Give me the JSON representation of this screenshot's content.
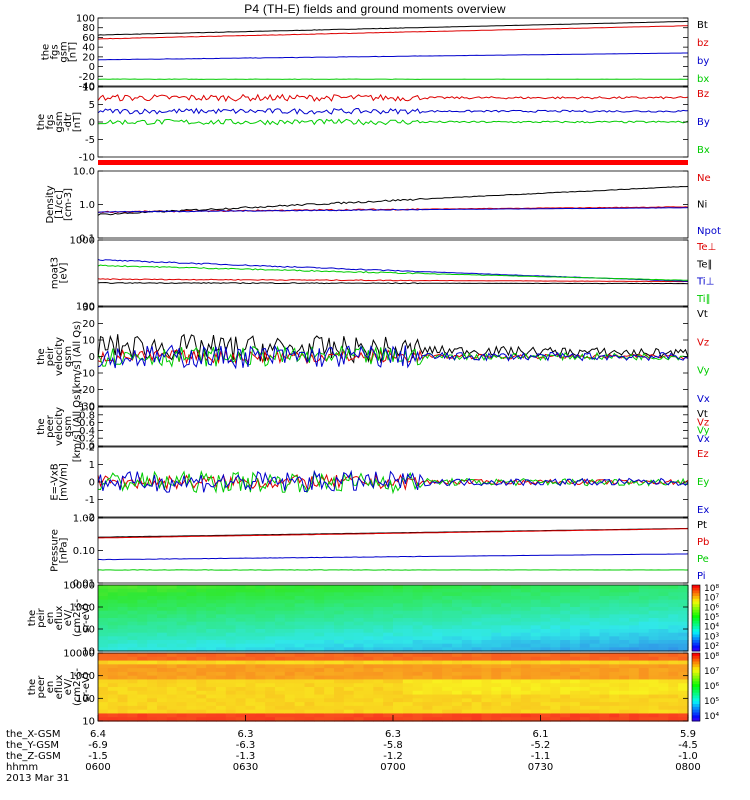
{
  "title": "P4 (TH-E) fields and ground moments overview",
  "chart_data": {
    "type": "line",
    "title": "P4 (TH-E) fields and ground moments overview",
    "x_axis": {
      "tick_rows": [
        {
          "label": "the_X-GSM",
          "values": [
            "6.4",
            "6.3",
            "6.3",
            "6.1",
            "5.9"
          ]
        },
        {
          "label": "the_Y-GSM",
          "values": [
            "-6.9",
            "-6.3",
            "-5.8",
            "-5.2",
            "-4.5"
          ]
        },
        {
          "label": "the_Z-GSM",
          "values": [
            "-1.5",
            "-1.3",
            "-1.2",
            "-1.1",
            "-1.0"
          ]
        },
        {
          "label": "hhmm",
          "values": [
            "0600",
            "0630",
            "0700",
            "0730",
            "0800"
          ]
        }
      ],
      "date": "2013 Mar 31"
    },
    "panels": [
      {
        "id": "fgs_gsm",
        "type": "line",
        "ylabel": [
          "the",
          "fgs",
          "gsm",
          "[nT]"
        ],
        "ylim": [
          -40,
          100
        ],
        "yticks": [
          "100",
          "80",
          "60",
          "40",
          "20",
          "0",
          "-20",
          "-40"
        ],
        "series": [
          {
            "name": "Bt",
            "color": "#000000",
            "start": 65,
            "end": 93,
            "noise": 0.4
          },
          {
            "name": "bz",
            "color": "#dd0000",
            "start": 57,
            "end": 84,
            "noise": 0.4
          },
          {
            "name": "by",
            "color": "#0000cc",
            "start": 14,
            "end": 28,
            "noise": 0.4
          },
          {
            "name": "bx",
            "color": "#00cc00",
            "start": -26,
            "end": -26,
            "noise": 0.4
          }
        ]
      },
      {
        "id": "fgs_dsl",
        "type": "line",
        "ylabel": [
          "the",
          "fgs",
          "gsm",
          "-dtr",
          "[nT]"
        ],
        "ylim": [
          -15,
          11
        ],
        "yticks": [
          "10",
          "5",
          "0",
          "-5",
          "-10"
        ],
        "series": [
          {
            "name": "Bz",
            "color": "#dd0000",
            "start": 7,
            "end": 7,
            "noise": 1.2
          },
          {
            "name": "By",
            "color": "#0000cc",
            "start": 2,
            "end": 2,
            "noise": 1.0
          },
          {
            "name": "Bx",
            "color": "#00cc00",
            "start": -2,
            "end": -2,
            "noise": 1.0
          }
        ]
      },
      {
        "id": "density",
        "type": "line",
        "scale": "log",
        "ylabel": [
          "Density",
          "[1/cc]",
          "[cm-3]"
        ],
        "ylim": [
          0.1,
          10
        ],
        "yticks": [
          "10.0",
          "1.0",
          "0.1"
        ],
        "series": [
          {
            "name": "Ne",
            "color": "#dd0000",
            "start": 0.6,
            "end": 0.85,
            "noise": 0.05
          },
          {
            "name": "Ni",
            "color": "#000000",
            "start": 0.5,
            "end": 3.5,
            "noise": 0.06
          },
          {
            "name": "Npot",
            "color": "#0000cc",
            "start": 0.6,
            "end": 0.8,
            "noise": 0.03
          }
        ]
      },
      {
        "id": "temperature",
        "type": "line",
        "scale": "log",
        "ylabel": [
          "moat3",
          "[eV]"
        ],
        "ylim": [
          100,
          10000
        ],
        "yticks": [
          "1000",
          "100"
        ],
        "series": [
          {
            "name": "Te⊥",
            "color": "#dd0000",
            "start": 650,
            "end": 550,
            "noise": 0.03
          },
          {
            "name": "Te∥",
            "color": "#000000",
            "start": 500,
            "end": 480,
            "noise": 0.03
          },
          {
            "name": "Ti⊥",
            "color": "#0000cc",
            "start": 2500,
            "end": 560,
            "noise": 0.04
          },
          {
            "name": "Ti∥",
            "color": "#00cc00",
            "start": 1700,
            "end": 600,
            "noise": 0.04
          }
        ]
      },
      {
        "id": "peir_velocity",
        "type": "line",
        "ylabel": [
          "the",
          "peir",
          "velocity",
          "gsm",
          "[km/s] (All Qs)"
        ],
        "ylim": [
          -30,
          30
        ],
        "yticks": [
          "30",
          "20",
          "10",
          "0",
          "-10",
          "-20",
          "-30"
        ],
        "series": [
          {
            "name": "Vt",
            "color": "#000000",
            "start": 6,
            "end": 2,
            "noise": 8
          },
          {
            "name": "Vz",
            "color": "#dd0000",
            "start": 0,
            "end": 0,
            "noise": 4
          },
          {
            "name": "Vy",
            "color": "#00cc00",
            "start": 0,
            "end": 0,
            "noise": 6
          },
          {
            "name": "Vx",
            "color": "#0000cc",
            "start": 0,
            "end": 0,
            "noise": 7
          }
        ]
      },
      {
        "id": "peer_velocity",
        "type": "line",
        "ylabel": [
          "the",
          "peer",
          "velocity",
          "gsm",
          "[km/s] (All Qs)"
        ],
        "ylim": [
          0,
          1
        ],
        "yticks": [
          "1.0",
          "0.8",
          "0.6",
          "0.4",
          "0.2",
          "0.0"
        ],
        "series": [
          {
            "name": "Vt",
            "color": "#000000"
          },
          {
            "name": "Vz",
            "color": "#dd0000"
          },
          {
            "name": "Vy",
            "color": "#00cc00"
          },
          {
            "name": "Vx",
            "color": "#0000cc"
          }
        ]
      },
      {
        "id": "efield",
        "type": "line",
        "ylabel": [
          "E=-VxB",
          "[mV/m]"
        ],
        "ylim": [
          -2,
          2
        ],
        "yticks": [
          "2",
          "1",
          "0",
          "-1",
          "-2"
        ],
        "series": [
          {
            "name": "Ez",
            "color": "#dd0000",
            "start": 0,
            "end": 0,
            "noise": 0.4
          },
          {
            "name": "Ey",
            "color": "#00cc00",
            "start": 0,
            "end": 0,
            "noise": 0.6
          },
          {
            "name": "Ex",
            "color": "#0000cc",
            "start": 0,
            "end": 0,
            "noise": 0.6
          }
        ]
      },
      {
        "id": "pressure",
        "type": "line",
        "scale": "log",
        "ylabel": [
          "Pressure",
          "[nPa]"
        ],
        "ylim": [
          0.01,
          10
        ],
        "yticks": [
          "1.00",
          "0.10",
          "0.01"
        ],
        "series": [
          {
            "name": "Pt",
            "color": "#000000",
            "start": 1.3,
            "end": 3.3,
            "noise": 0.01
          },
          {
            "name": "Pb",
            "color": "#dd0000",
            "start": 1.2,
            "end": 3.2,
            "noise": 0.01
          },
          {
            "name": "Pe",
            "color": "#00cc00",
            "start": 0.04,
            "end": 0.04,
            "noise": 0.02
          },
          {
            "name": "Pi",
            "color": "#0000cc",
            "start": 0.12,
            "end": 0.22,
            "noise": 0.02
          }
        ]
      },
      {
        "id": "peir_eflux",
        "type": "heatmap",
        "ylabel": [
          "the",
          "peir",
          "en",
          "eflux",
          "eV/",
          "(cm2-s-",
          "sr-eV)"
        ],
        "ylim": [
          10,
          10000
        ],
        "yticks": [
          "10000",
          "1000",
          "100",
          "10"
        ],
        "colorbar": {
          "labels": [
            "10⁸",
            "10⁷",
            "10⁶",
            "10⁵",
            "10⁴",
            "10³",
            "10²"
          ]
        }
      },
      {
        "id": "peer_eflux",
        "type": "heatmap",
        "ylabel": [
          "the",
          "peer",
          "en",
          "eflux",
          "eV/",
          "(cm2-s-",
          "sr-eV)"
        ],
        "ylim": [
          10,
          10000
        ],
        "yticks": [
          "10000",
          "1000",
          "100",
          "10"
        ],
        "colorbar": {
          "labels": [
            "10⁸",
            "10⁷",
            "10⁶",
            "10⁵",
            "10⁴"
          ]
        }
      }
    ]
  }
}
